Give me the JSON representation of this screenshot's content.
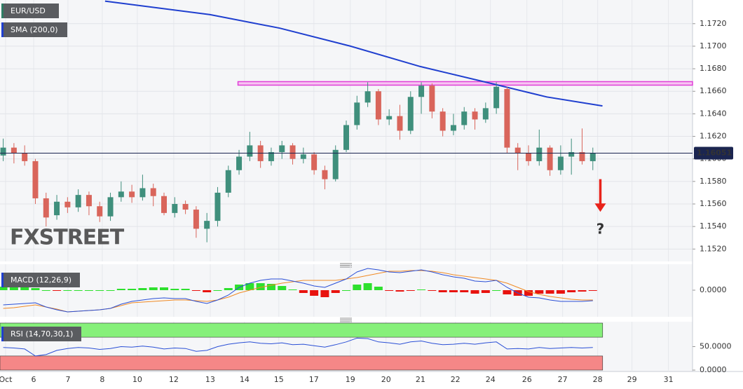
{
  "chart_data": [
    {
      "type": "candlestick",
      "title": "EUR/USD",
      "x": [
        0,
        1,
        2,
        3,
        4,
        5,
        6,
        7,
        8,
        9,
        10,
        11,
        12,
        13,
        14,
        15,
        16,
        17,
        18,
        19,
        20,
        21,
        22,
        23,
        24,
        25,
        26,
        27,
        28,
        29,
        30,
        31,
        32,
        33,
        34,
        35,
        36,
        37,
        38,
        39,
        40,
        41,
        42,
        43,
        44,
        45,
        46,
        47,
        48,
        49,
        50,
        51,
        52,
        53,
        54,
        55
      ],
      "open": [
        1.1603,
        1.161,
        1.1605,
        1.1598,
        1.1565,
        1.155,
        1.1562,
        1.1557,
        1.1568,
        1.1558,
        1.1549,
        1.1566,
        1.1571,
        1.1566,
        1.1574,
        1.1567,
        1.1552,
        1.156,
        1.1555,
        1.1538,
        1.1545,
        1.157,
        1.159,
        1.1602,
        1.1612,
        1.1598,
        1.1606,
        1.1612,
        1.16,
        1.1604,
        1.159,
        1.1582,
        1.1608,
        1.163,
        1.165,
        1.166,
        1.1635,
        1.1638,
        1.1625,
        1.1655,
        1.1665,
        1.1642,
        1.1625,
        1.163,
        1.1642,
        1.1635,
        1.1645,
        1.1662,
        1.161,
        1.1605,
        1.1598,
        1.161,
        1.159,
        1.1602,
        1.1606,
        1.1598
      ],
      "high": [
        1.1618,
        1.1614,
        1.1612,
        1.16,
        1.157,
        1.1568,
        1.1566,
        1.1573,
        1.1571,
        1.1562,
        1.157,
        1.158,
        1.1577,
        1.1586,
        1.1578,
        1.157,
        1.1566,
        1.1563,
        1.1558,
        1.1552,
        1.1575,
        1.1594,
        1.1608,
        1.1624,
        1.1616,
        1.161,
        1.1616,
        1.1614,
        1.161,
        1.1606,
        1.1594,
        1.1612,
        1.1634,
        1.1656,
        1.1668,
        1.1662,
        1.1644,
        1.1648,
        1.166,
        1.1668,
        1.1667,
        1.1645,
        1.164,
        1.1646,
        1.1645,
        1.165,
        1.1668,
        1.1664,
        1.1614,
        1.1612,
        1.1626,
        1.1612,
        1.1612,
        1.1618,
        1.1627,
        1.161
      ],
      "low": [
        1.1598,
        1.1596,
        1.1594,
        1.156,
        1.154,
        1.1546,
        1.1552,
        1.1553,
        1.155,
        1.1544,
        1.1545,
        1.1562,
        1.1561,
        1.1563,
        1.1558,
        1.155,
        1.1548,
        1.1551,
        1.153,
        1.1526,
        1.154,
        1.1566,
        1.1586,
        1.1598,
        1.1592,
        1.1594,
        1.16,
        1.1595,
        1.1596,
        1.1586,
        1.1573,
        1.158,
        1.1606,
        1.1626,
        1.1646,
        1.163,
        1.163,
        1.1617,
        1.1622,
        1.164,
        1.1636,
        1.162,
        1.1621,
        1.1626,
        1.1626,
        1.1632,
        1.164,
        1.1605,
        1.159,
        1.1594,
        1.1594,
        1.1585,
        1.1586,
        1.1586,
        1.1595,
        1.159
      ],
      "close": [
        1.161,
        1.1605,
        1.1598,
        1.1565,
        1.1548,
        1.1562,
        1.1557,
        1.1568,
        1.1558,
        1.1549,
        1.1566,
        1.1571,
        1.1566,
        1.1574,
        1.1567,
        1.1552,
        1.156,
        1.1555,
        1.1538,
        1.1545,
        1.157,
        1.159,
        1.1602,
        1.1612,
        1.1598,
        1.1606,
        1.1612,
        1.16,
        1.1604,
        1.159,
        1.1582,
        1.1608,
        1.163,
        1.165,
        1.166,
        1.1635,
        1.1638,
        1.1625,
        1.1655,
        1.1665,
        1.1642,
        1.1625,
        1.163,
        1.1642,
        1.1635,
        1.1645,
        1.1664,
        1.161,
        1.1605,
        1.1598,
        1.161,
        1.159,
        1.1602,
        1.1606,
        1.1598,
        1.1605
      ],
      "up_color": "#3f8f7c",
      "down_color": "#d9655b",
      "legend_color": "#2e7d64",
      "series": [
        {
          "name": "SMA (200,0)",
          "color": "#1f3fcf",
          "x": [
            9.5,
            19.3,
            25.8,
            32.4,
            38.9,
            45.5,
            50.7,
            55.9
          ],
          "values": [
            1.174,
            1.1728,
            1.1716,
            1.17,
            1.1682,
            1.1667,
            1.1655,
            1.1647
          ]
        }
      ],
      "resistance": {
        "value": 1.1667,
        "from_x": 21.9,
        "color": "#e03fd8"
      },
      "last_price": {
        "value": 1.16051,
        "label": "1.16051",
        "color": "#1b2550"
      },
      "annotation": {
        "text": "?",
        "x": 55.7,
        "arrow_from": 1.1582,
        "arrow_to": 1.1553,
        "text_y": 1.1537,
        "color": "#e8231b"
      },
      "watermark": "FXSTREET",
      "xlim": [
        -0.3,
        64.3
      ],
      "xticks": [
        {
          "value": 0.22,
          "label": "Oct"
        },
        {
          "value": 2.84,
          "label": "6"
        },
        {
          "value": 6.04,
          "label": "7"
        },
        {
          "value": 9.24,
          "label": "8"
        },
        {
          "value": 12.51,
          "label": "10"
        },
        {
          "value": 15.91,
          "label": "12"
        },
        {
          "value": 19.31,
          "label": "13"
        },
        {
          "value": 22.51,
          "label": "14"
        },
        {
          "value": 25.71,
          "label": "15"
        },
        {
          "value": 28.98,
          "label": "17"
        },
        {
          "value": 32.38,
          "label": "19"
        },
        {
          "value": 35.71,
          "label": "20"
        },
        {
          "value": 38.92,
          "label": "21"
        },
        {
          "value": 42.18,
          "label": "22"
        },
        {
          "value": 45.45,
          "label": "24"
        },
        {
          "value": 48.85,
          "label": "26"
        },
        {
          "value": 52.18,
          "label": "27"
        },
        {
          "value": 55.45,
          "label": "28"
        },
        {
          "value": 58.65,
          "label": "29"
        },
        {
          "value": 62.05,
          "label": "31"
        }
      ],
      "ylim": [
        1.1509,
        1.1741
      ],
      "yticks": [
        {
          "value": 1.152,
          "label": "1.1520"
        },
        {
          "value": 1.154,
          "label": "1.1540"
        },
        {
          "value": 1.156,
          "label": "1.1560"
        },
        {
          "value": 1.158,
          "label": "1.1580"
        },
        {
          "value": 1.16,
          "label": "1.1600"
        },
        {
          "value": 1.162,
          "label": "1.1620"
        },
        {
          "value": 1.164,
          "label": "1.1640"
        },
        {
          "value": 1.166,
          "label": "1.1660"
        },
        {
          "value": 1.168,
          "label": "1.1680"
        },
        {
          "value": 1.17,
          "label": "1.1700"
        },
        {
          "value": 1.172,
          "label": "1.1720"
        }
      ],
      "grid": true
    },
    {
      "type": "macd",
      "title": "MACD (12,26,9)",
      "series": [
        {
          "name": "MACD",
          "color": "#2a4fd6",
          "values": [
            -0.00105,
            -0.001,
            -0.00095,
            -0.0009,
            -0.0012,
            -0.0014,
            -0.00155,
            -0.0015,
            -0.00145,
            -0.0014,
            -0.0013,
            -0.001,
            -0.0008,
            -0.0007,
            -0.0006,
            -0.00055,
            -0.0006,
            -0.0006,
            -0.0008,
            -0.00095,
            -0.0007,
            -0.00035,
            0.0002,
            0.0005,
            0.0007,
            0.0008,
            0.0008,
            0.00065,
            0.0005,
            0.0003,
            0.0002,
            0.0005,
            0.0008,
            0.0013,
            0.00155,
            0.00145,
            0.0013,
            0.00125,
            0.00135,
            0.00145,
            0.0013,
            0.0011,
            0.00095,
            0.00085,
            0.00065,
            0.0006,
            0.0007,
            0.0002,
            -0.0002,
            -0.0005,
            -0.00055,
            -0.0007,
            -0.0008,
            -0.0008,
            -0.0008,
            -0.00075
          ]
        },
        {
          "name": "Signal",
          "color": "#f08a24",
          "values": [
            -0.0013,
            -0.00125,
            -0.00115,
            -0.00105,
            -0.0012,
            -0.00135,
            -0.00155,
            -0.0015,
            -0.00145,
            -0.0014,
            -0.0013,
            -0.0011,
            -0.0009,
            -0.00085,
            -0.0008,
            -0.00075,
            -0.0007,
            -0.0007,
            -0.00075,
            -0.0008,
            -0.0007,
            -0.0005,
            -0.0002,
            0,
            0.0002,
            0.00035,
            0.0005,
            0.0006,
            0.0007,
            0.0007,
            0.0007,
            0.0007,
            0.0008,
            0.0009,
            0.00105,
            0.0012,
            0.00135,
            0.00135,
            0.0014,
            0.0014,
            0.00135,
            0.00125,
            0.0011,
            0.001,
            0.0009,
            0.0008,
            0.0007,
            0.0005,
            0.0002,
            -0.0001,
            -0.0003,
            -0.00045,
            -0.00055,
            -0.00065,
            -0.0007,
            -0.0007
          ]
        },
        {
          "name": "Histogram",
          "up_color": "#2ee02e",
          "down_color": "#e8130f",
          "values": [
            0.00025,
            0.00025,
            0.0002,
            0.00015,
            0,
            -5e-05,
            0,
            0,
            0,
            0,
            0,
            0.0001,
            0.0001,
            0.00015,
            0.0002,
            0.0002,
            0.0001,
            0.0001,
            -5e-05,
            -0.00015,
            0,
            0.00015,
            0.0004,
            0.0005,
            0.0005,
            0.00045,
            0.0003,
            5e-05,
            -0.0002,
            -0.0004,
            -0.0005,
            -0.0002,
            0,
            0.0004,
            0.0005,
            0.00025,
            -5e-05,
            -0.0001,
            -5e-05,
            5e-05,
            -5e-05,
            -0.00015,
            -0.00015,
            -0.00015,
            -0.00025,
            -0.0002,
            0,
            -0.0003,
            -0.0004,
            -0.0004,
            -0.00025,
            -0.00025,
            -0.00025,
            -0.00015,
            -0.0001,
            -5e-05
          ]
        }
      ],
      "ylim": [
        -0.0018,
        0.0018
      ],
      "yticks": [
        {
          "value": 0,
          "label": "0.0000"
        }
      ]
    },
    {
      "type": "rsi",
      "title": "RSI (14,70,30,1)",
      "series": [
        {
          "name": "RSI",
          "color": "#2a4fd6",
          "values": [
            48,
            47,
            45,
            30,
            33,
            42,
            46,
            48,
            47,
            44,
            46,
            50,
            49,
            51,
            49,
            45,
            47,
            46,
            40,
            42,
            50,
            55,
            58,
            60,
            57,
            56,
            58,
            54,
            55,
            52,
            49,
            54,
            60,
            68,
            67,
            60,
            58,
            55,
            60,
            62,
            57,
            54,
            55,
            57,
            55,
            58,
            60,
            45,
            46,
            45,
            48,
            46,
            47,
            48,
            47,
            48
          ]
        }
      ],
      "overbought": 70,
      "oversold": 30,
      "overbought_color": "#86f07a",
      "oversold_color": "#f58787",
      "ylim": [
        0,
        100
      ],
      "yticks": [
        {
          "value": 50,
          "label": "50.0000"
        },
        {
          "value": 0,
          "label": "0.0000"
        }
      ]
    }
  ]
}
